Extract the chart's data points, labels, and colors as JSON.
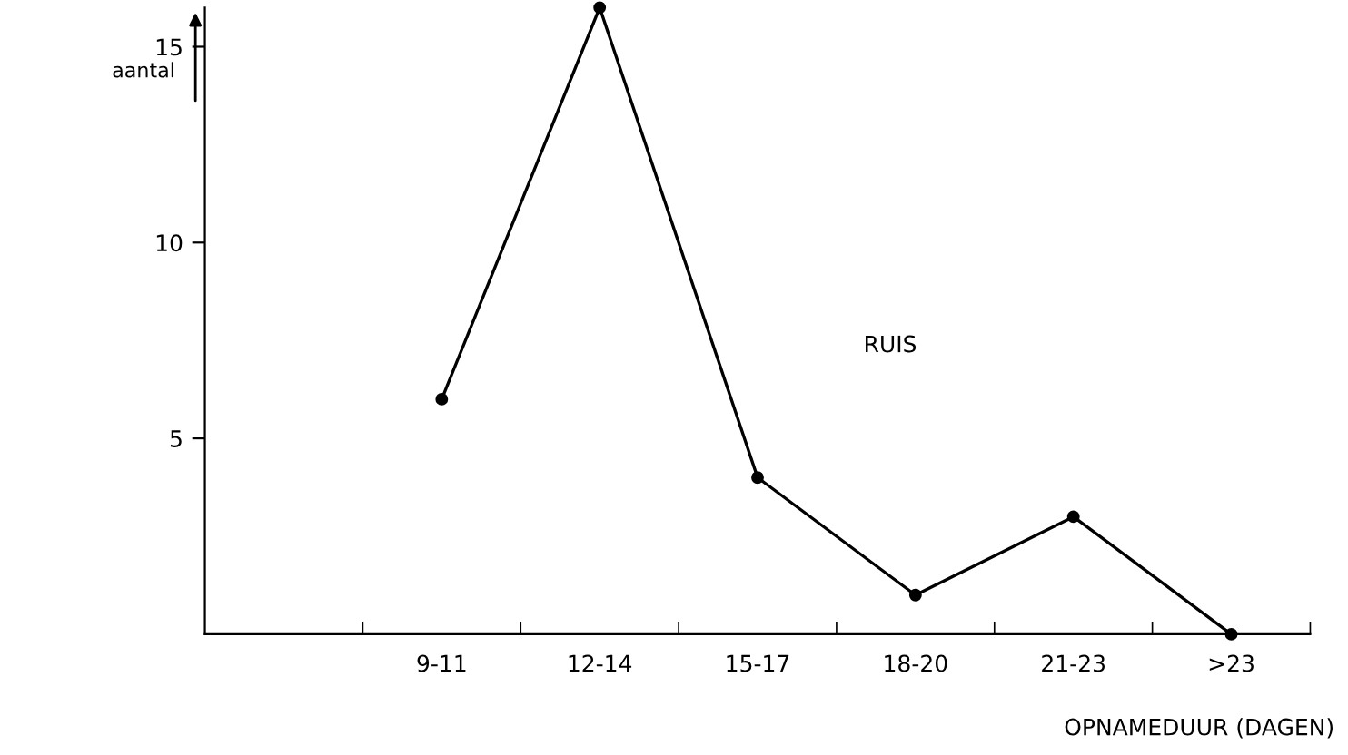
{
  "chart_data": {
    "type": "line",
    "categories": [
      null,
      "9-11",
      "12-14",
      "15-17",
      "18-20",
      "21-23",
      ">23"
    ],
    "series": [
      {
        "color": "#000000",
        "values": [
          null,
          6,
          16,
          4,
          1,
          3,
          0
        ]
      }
    ],
    "ylim": [
      0,
      16
    ],
    "yticks": [
      5,
      10,
      15
    ],
    "ylabel": "aantal",
    "xlabel": "OPNAMEDUUR (DAGEN)",
    "annotations": [
      "RUIS"
    ],
    "marker": "circle",
    "line_style": "solid",
    "grid": false,
    "legend": false
  }
}
